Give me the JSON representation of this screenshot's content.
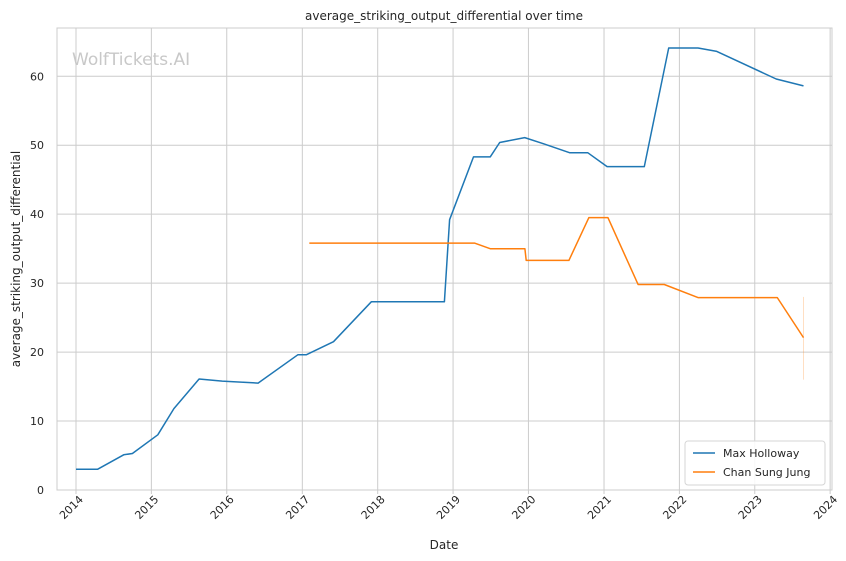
{
  "chart_data": {
    "type": "line",
    "title": "average_striking_output_differential over time",
    "xlabel": "Date",
    "ylabel": "average_striking_output_differential",
    "watermark": "WolfTickets.AI",
    "xlim": [
      "2013-10-01",
      "2024-01-10"
    ],
    "ylim": [
      0,
      67
    ],
    "x_ticks": [
      "2014-01-01",
      "2015-01-01",
      "2016-01-01",
      "2017-01-01",
      "2018-01-01",
      "2019-01-01",
      "2020-01-01",
      "2021-01-01",
      "2022-01-01",
      "2023-01-01",
      "2024-01-01"
    ],
    "x_tick_labels": [
      "2014",
      "2015",
      "2016",
      "2017",
      "2018",
      "2019",
      "2020",
      "2021",
      "2022",
      "2023",
      "2024"
    ],
    "y_ticks": [
      0,
      10,
      20,
      30,
      40,
      50,
      60
    ],
    "grid": true,
    "legend": "bottom-right",
    "series": [
      {
        "name": "Max Holloway",
        "color": "#1f77b4",
        "x": [
          "2014-01-01",
          "2014-04-15",
          "2014-08-20",
          "2014-10-01",
          "2015-02-01",
          "2015-04-20",
          "2015-08-20",
          "2015-12-10",
          "2016-06-01",
          "2016-12-10",
          "2017-01-20",
          "2017-06-01",
          "2017-12-01",
          "2018-06-01",
          "2018-11-20",
          "2018-12-15",
          "2019-04-10",
          "2019-06-30",
          "2019-08-15",
          "2019-12-14",
          "2020-03-15",
          "2020-07-20",
          "2020-10-15",
          "2021-01-16",
          "2021-07-15",
          "2021-11-10",
          "2022-04-01",
          "2022-07-01",
          "2023-04-15",
          "2023-08-25"
        ],
        "y": [
          3.0,
          3.0,
          5.1,
          5.3,
          8.0,
          11.8,
          16.1,
          15.8,
          15.5,
          19.6,
          19.6,
          21.5,
          27.3,
          27.3,
          27.3,
          39.2,
          48.3,
          48.3,
          50.4,
          51.1,
          50.2,
          48.9,
          48.9,
          46.9,
          46.9,
          64.1,
          64.1,
          63.6,
          59.6,
          58.6
        ]
      },
      {
        "name": "Chan Sung Jung",
        "color": "#ff7f0e",
        "x": [
          "2017-02-04",
          "2019-04-15",
          "2019-06-30",
          "2019-12-15",
          "2019-12-21",
          "2020-07-15",
          "2020-10-20",
          "2021-01-20",
          "2021-06-15",
          "2021-10-20",
          "2022-04-01",
          "2022-08-01",
          "2023-04-20",
          "2023-08-25"
        ],
        "y": [
          35.8,
          35.8,
          35.0,
          35.0,
          33.3,
          33.3,
          39.5,
          39.5,
          29.8,
          29.8,
          27.9,
          27.9,
          27.9,
          22.1
        ]
      }
    ]
  }
}
